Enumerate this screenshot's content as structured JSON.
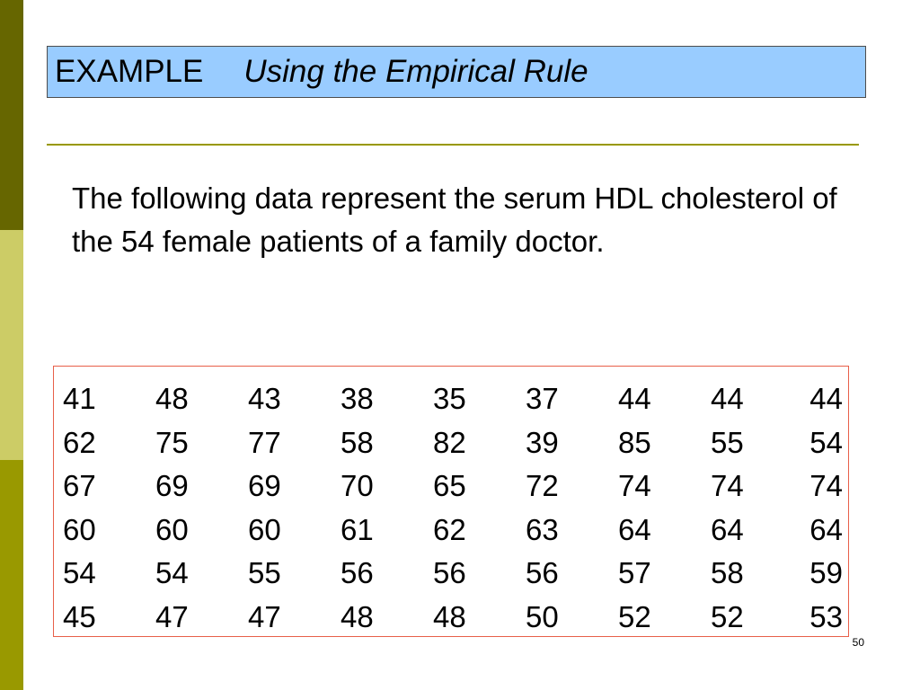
{
  "title": {
    "main": "EXAMPLE",
    "subtitle": "Using the Empirical Rule"
  },
  "body": {
    "text": "The following data represent the serum HDL cholesterol of the 54 female patients of a family doctor."
  },
  "data_table": {
    "rows": [
      [
        "41",
        "48",
        "43",
        "38",
        "35",
        "37",
        "44",
        "44",
        "44"
      ],
      [
        "62",
        "75",
        "77",
        "58",
        "82",
        "39",
        "85",
        "55",
        "54"
      ],
      [
        "67",
        "69",
        "69",
        "70",
        "65",
        "72",
        "74",
        "74",
        "74"
      ],
      [
        "60",
        "60",
        "60",
        "61",
        "62",
        "63",
        "64",
        "64",
        "64"
      ],
      [
        "54",
        "54",
        "55",
        "56",
        "56",
        "56",
        "57",
        "58",
        "59"
      ],
      [
        "45",
        "47",
        "47",
        "48",
        "48",
        "50",
        "52",
        "52",
        "53"
      ]
    ]
  },
  "footer": {
    "page_number": "50"
  },
  "colors": {
    "title_fill": "#99ccff",
    "accent_dark": "#666600",
    "accent_light": "#cccc66",
    "accent_mid": "#999900",
    "table_border": "#e8604a"
  }
}
